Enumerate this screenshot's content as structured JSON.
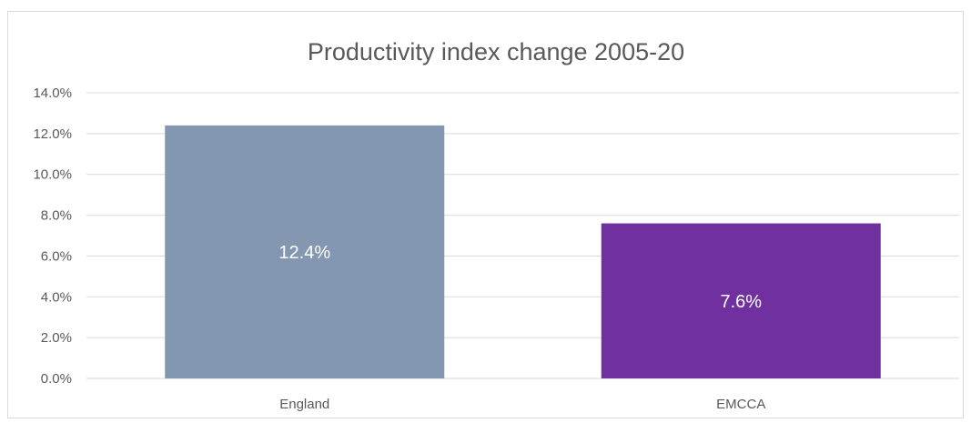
{
  "chart_data": {
    "type": "bar",
    "title": "Productivity index change 2005-20",
    "categories": [
      "England",
      "EMCCA"
    ],
    "values": [
      12.4,
      7.6
    ],
    "data_labels": [
      "12.4%",
      "7.6%"
    ],
    "colors": [
      "#8497b0",
      "#7030a0"
    ],
    "ylim": [
      0,
      14
    ],
    "y_ticks": [
      0,
      2,
      4,
      6,
      8,
      10,
      12,
      14
    ],
    "y_tick_labels": [
      "0.0%",
      "2.0%",
      "4.0%",
      "6.0%",
      "8.0%",
      "10.0%",
      "12.0%",
      "14.0%"
    ],
    "grid": true,
    "legend": "none",
    "xlabel": "",
    "ylabel": ""
  }
}
